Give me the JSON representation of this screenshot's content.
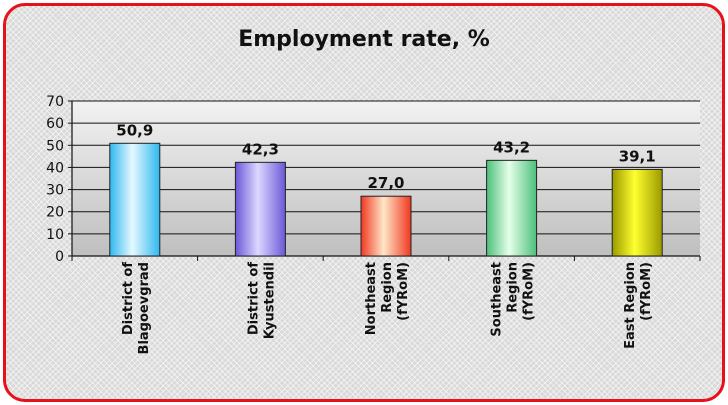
{
  "chart_data": {
    "type": "bar",
    "title": "Employment rate, %",
    "categories": [
      [
        "District of",
        "Blagoevgrad"
      ],
      [
        "District of",
        "Kyustendil"
      ],
      [
        "Northeast",
        "Region",
        "(fYRoM)"
      ],
      [
        "Southeast",
        "Region",
        "(fYRoM)"
      ],
      [
        "East Region",
        "(fYRoM)"
      ]
    ],
    "values": [
      50.9,
      42.3,
      27.0,
      43.2,
      39.1
    ],
    "value_labels": [
      "50,9",
      "42,3",
      "27,0",
      "43,2",
      "39,1"
    ],
    "ylim": [
      0,
      70
    ],
    "yticks": [
      0,
      10,
      20,
      30,
      40,
      50,
      60,
      70
    ],
    "grid": true,
    "bar_colors": [
      [
        "#2fb8f0",
        "#e6f9ff"
      ],
      [
        "#6a58d8",
        "#ddd8ff"
      ],
      [
        "#f03820",
        "#ffe6c8"
      ],
      [
        "#4cc07a",
        "#e6ffea"
      ],
      [
        "#9a9a00",
        "#ffff30"
      ]
    ]
  }
}
